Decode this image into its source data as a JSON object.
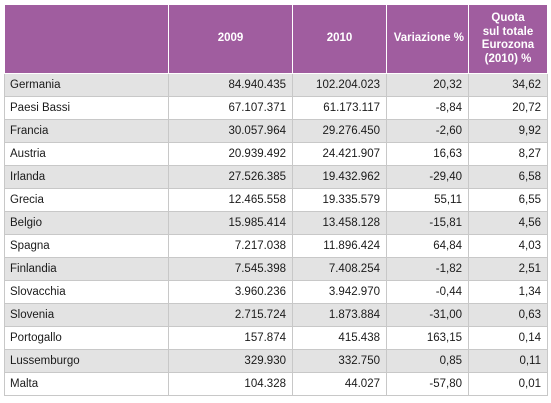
{
  "table": {
    "headers": {
      "country": "",
      "y2009": "2009",
      "y2010": "2010",
      "variation": "Variazione %",
      "share_lines": [
        "Quota",
        "sul totale",
        "Eurozona",
        "(2010) %"
      ]
    },
    "rows": [
      {
        "country": "Germania",
        "y2009": "84.940.435",
        "y2010": "102.204.023",
        "variation": "20,32",
        "share": "34,62"
      },
      {
        "country": "Paesi Bassi",
        "y2009": "67.107.371",
        "y2010": "61.173.117",
        "variation": "-8,84",
        "share": "20,72"
      },
      {
        "country": "Francia",
        "y2009": "30.057.964",
        "y2010": "29.276.450",
        "variation": "-2,60",
        "share": "9,92"
      },
      {
        "country": "Austria",
        "y2009": "20.939.492",
        "y2010": "24.421.907",
        "variation": "16,63",
        "share": "8,27"
      },
      {
        "country": "Irlanda",
        "y2009": "27.526.385",
        "y2010": "19.432.962",
        "variation": "-29,40",
        "share": "6,58"
      },
      {
        "country": "Grecia",
        "y2009": "12.465.558",
        "y2010": "19.335.579",
        "variation": "55,11",
        "share": "6,55"
      },
      {
        "country": "Belgio",
        "y2009": "15.985.414",
        "y2010": "13.458.128",
        "variation": "-15,81",
        "share": "4,56"
      },
      {
        "country": "Spagna",
        "y2009": "7.217.038",
        "y2010": "11.896.424",
        "variation": "64,84",
        "share": "4,03"
      },
      {
        "country": "Finlandia",
        "y2009": "7.545.398",
        "y2010": "7.408.254",
        "variation": "-1,82",
        "share": "2,51"
      },
      {
        "country": "Slovacchia",
        "y2009": "3.960.236",
        "y2010": "3.942.970",
        "variation": "-0,44",
        "share": "1,34"
      },
      {
        "country": "Slovenia",
        "y2009": "2.715.724",
        "y2010": "1.873.884",
        "variation": "-31,00",
        "share": "0,63"
      },
      {
        "country": "Portogallo",
        "y2009": "157.874",
        "y2010": "415.438",
        "variation": "163,15",
        "share": "0,14"
      },
      {
        "country": "Lussemburgo",
        "y2009": "329.930",
        "y2010": "332.750",
        "variation": "0,85",
        "share": "0,11"
      },
      {
        "country": "Malta",
        "y2009": "104.328",
        "y2010": "44.027",
        "variation": "-57,80",
        "share": "0,01"
      }
    ]
  },
  "colors": {
    "header_bg": "#a05d9f",
    "header_text": "#ffffff",
    "row_shade": "#e3e3e3",
    "row_plain": "#ffffff",
    "grid": "#c8c8c8"
  }
}
